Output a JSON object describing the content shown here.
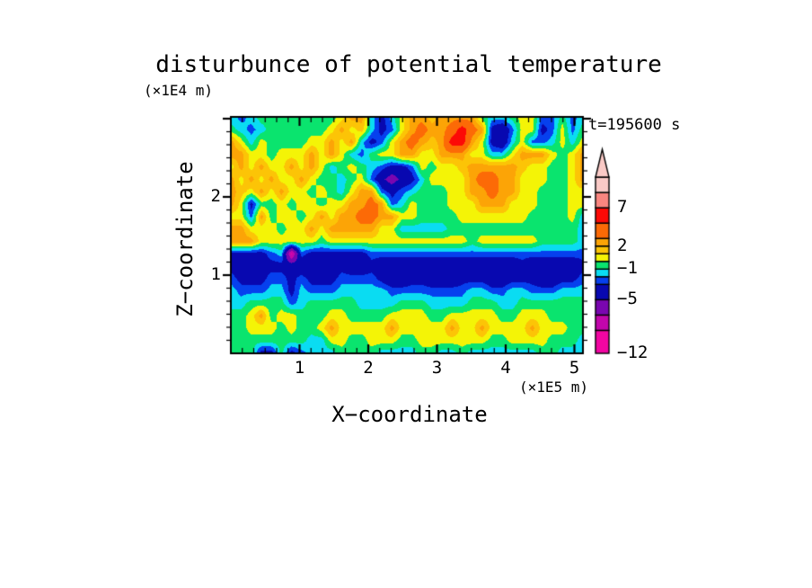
{
  "figure": {
    "title": "disturbunce of potential temperature",
    "y_axis_unit": "(×1E4 m)",
    "x_axis_unit": "(×1E5 m)",
    "y_axis_label": "Z−coordinate",
    "x_axis_label": "X−coordinate",
    "time_label": "t=195600 s"
  },
  "chart_data": {
    "type": "heatmap",
    "title": "disturbunce of potential temperature",
    "xlabel": "X-coordinate",
    "ylabel": "Z-coordinate",
    "x_unit": "×1E5 m",
    "z_unit": "×1E4 m",
    "time_annotation": "t=195600 s",
    "x_axis_range": [
      0,
      5.12
    ],
    "z_axis_range": [
      0,
      3.02
    ],
    "x_major_ticks": [
      1,
      2,
      3,
      4,
      5
    ],
    "y_major_ticks": [
      1,
      2
    ],
    "x_tick_labels": [
      "1",
      "2",
      "3",
      "4",
      "5"
    ],
    "y_tick_labels": [
      "1",
      "2"
    ],
    "ticks_per_unit": 6,
    "contour_levels": [
      -12,
      -9,
      -7,
      -5,
      -3,
      -2,
      -1,
      0,
      1,
      2,
      3,
      5,
      7,
      9,
      11
    ],
    "palette": [
      "#f206a2",
      "#c206ac",
      "#7a06b0",
      "#0808b0",
      "#0640ee",
      "#0adcf2",
      "#0ae46e",
      "#f4f406",
      "#fcc406",
      "#fca406",
      "#fc6a06",
      "#fc0a06",
      "#fa8680",
      "#facac6"
    ],
    "colorbar_labels": [
      {
        "value": 7,
        "label": "7"
      },
      {
        "value": 2,
        "label": "2"
      },
      {
        "value": -1,
        "label": "−1"
      },
      {
        "value": -5,
        "label": "−5"
      },
      {
        "value": -12,
        "label": "−12"
      }
    ],
    "grid": {
      "cols": 36,
      "rows": 20,
      "x_min": 0,
      "x_max": 5.12,
      "z_min": 0,
      "z_max": 3.02,
      "values": [
        [
          -1.5,
          -2.4,
          -1.5,
          -0.5,
          -0.5,
          -0.5,
          -0.5,
          -0.5,
          -0.5,
          -0.5,
          -0.5,
          0.5,
          2.5,
          2.5,
          -1.5,
          -3.6,
          -1.5,
          0.5,
          2.5,
          2.5,
          1.5,
          2.5,
          2.5,
          2.5,
          2.5,
          -0.5,
          -1.5,
          -1.5,
          -0.5,
          0.5,
          0.5,
          -2.4,
          -2.4,
          -0.5,
          -2.4,
          -1.5
        ],
        [
          -0.5,
          -1.5,
          -2.4,
          -1.5,
          -0.5,
          -0.5,
          -0.5,
          -0.5,
          -0.5,
          -0.5,
          0.5,
          2.5,
          0.5,
          1.5,
          -1.5,
          -3.6,
          -2.4,
          0.5,
          2.5,
          3.8,
          2.5,
          2.5,
          3.8,
          6,
          3.8,
          2.5,
          -3.6,
          -4.6,
          -2.4,
          0.5,
          0.5,
          -3.6,
          -2.4,
          0.5,
          -2.4,
          -0.5
        ],
        [
          2.5,
          0.5,
          -1.5,
          0.5,
          -0.5,
          -0.5,
          -0.5,
          -0.5,
          0.5,
          0.5,
          2.5,
          0.5,
          2.5,
          -1.5,
          -3.6,
          -2.4,
          0.5,
          2.5,
          3.8,
          2.5,
          1.5,
          2.5,
          6,
          6,
          2.5,
          0.5,
          -3.6,
          -4.6,
          -1.5,
          0.5,
          -2.4,
          -2.4,
          -1.5,
          0.5,
          -1.5,
          0.5
        ],
        [
          2.5,
          2.5,
          0.5,
          0.5,
          -0.5,
          0.5,
          0.5,
          0.5,
          2.5,
          0.5,
          2.5,
          0.5,
          -1.5,
          -2.4,
          -0.5,
          0.5,
          0.5,
          2.5,
          2.5,
          0.5,
          0.5,
          2.5,
          2.5,
          2.5,
          0.5,
          0.5,
          -1.5,
          -1.5,
          0.5,
          2.5,
          2.5,
          2.5,
          0.5,
          -0.5,
          0.5,
          2.5
        ],
        [
          0.5,
          2.5,
          0.5,
          2.5,
          0.5,
          0.5,
          2.5,
          0.5,
          2.5,
          0.5,
          -1.5,
          -0.5,
          0.5,
          -0.5,
          -1.5,
          -2.4,
          -3.6,
          -3.6,
          -2.4,
          0.5,
          -0.5,
          0.5,
          0.5,
          1.5,
          2.5,
          2.5,
          2.5,
          2.5,
          2.5,
          1.5,
          0.5,
          0.5,
          -0.5,
          -0.5,
          0.5,
          2.5
        ],
        [
          2.5,
          0.5,
          2.5,
          0.5,
          2.5,
          0.5,
          0.5,
          2.5,
          0.5,
          -0.5,
          -0.5,
          -1.5,
          -0.5,
          0.5,
          -2.4,
          -4.6,
          -6,
          -4.6,
          -3.6,
          -1.5,
          0.5,
          0.5,
          0.5,
          0.5,
          2.5,
          3.8,
          3.8,
          2.5,
          2.5,
          0.5,
          0.5,
          0.5,
          -0.5,
          -0.5,
          0.5,
          2.5
        ],
        [
          2.5,
          1.5,
          0.5,
          2.5,
          0.5,
          2.5,
          0.5,
          0.5,
          -0.5,
          0.5,
          -0.5,
          -1.5,
          0.5,
          2.5,
          2.5,
          -2.4,
          -3.6,
          -2.4,
          -1.5,
          -0.5,
          -0.5,
          -0.5,
          0.5,
          0.5,
          2.5,
          2.5,
          3.8,
          2.5,
          2.5,
          0.5,
          0.5,
          -0.5,
          -0.5,
          -0.5,
          0.5,
          0.5
        ],
        [
          2.5,
          0.5,
          -3.6,
          -0.5,
          -0.5,
          0.5,
          -0.5,
          0.5,
          0.5,
          -0.5,
          0.5,
          0.5,
          2.5,
          2.5,
          3.8,
          2.5,
          -2.4,
          -1.5,
          0.5,
          -0.5,
          -0.5,
          -0.5,
          0.5,
          0.5,
          0.5,
          2.5,
          2.5,
          2.5,
          0.5,
          0.5,
          0.5,
          -0.5,
          -0.5,
          -0.5,
          0.5,
          0.5
        ],
        [
          0.5,
          0.5,
          -2.4,
          2.5,
          -0.5,
          0.5,
          0.5,
          -0.5,
          0.5,
          2.5,
          0.5,
          2.5,
          2.5,
          3.8,
          3.8,
          2.5,
          2.5,
          0.5,
          0.5,
          -0.5,
          -0.5,
          -0.5,
          -0.5,
          0.5,
          0.5,
          0.5,
          0.5,
          0.5,
          0.5,
          0.5,
          -0.5,
          -0.5,
          -0.5,
          -0.5,
          0.5,
          -1.5
        ],
        [
          2.5,
          2.5,
          0.5,
          0.5,
          0.5,
          -0.5,
          0.5,
          0.5,
          2.5,
          0.5,
          2.5,
          2.5,
          2.5,
          2.5,
          2.5,
          0.5,
          0.5,
          -1.5,
          -1.5,
          -1.5,
          -1.5,
          -1.5,
          -0.5,
          -0.5,
          -0.5,
          -0.5,
          -0.5,
          -0.5,
          -0.5,
          -0.5,
          -0.5,
          -0.5,
          -0.5,
          -0.5,
          -0.5,
          -1.5
        ],
        [
          2.5,
          2.5,
          2.5,
          0.5,
          0.5,
          0.5,
          0.5,
          0.5,
          0.5,
          -0.5,
          0.5,
          0.5,
          0.5,
          0.5,
          0.5,
          0.5,
          0.5,
          0.5,
          0.5,
          0.5,
          0.5,
          0.5,
          0.5,
          0.5,
          -0.5,
          0.5,
          0.5,
          0.5,
          0.5,
          0.5,
          0.5,
          -0.5,
          -0.5,
          -0.5,
          -0.5,
          -1.5
        ],
        [
          -3.6,
          -3.6,
          -3.6,
          -3.6,
          -2.4,
          -1.5,
          -9.5,
          -2.4,
          -3.6,
          -3.6,
          -3.6,
          -3.6,
          -3.6,
          -3.6,
          -2.4,
          -2.4,
          -2.4,
          -2.4,
          -2.4,
          -2.4,
          -2.4,
          -2.4,
          -2.4,
          -2.4,
          -2.4,
          -2.4,
          -2.4,
          -2.4,
          -2.4,
          -2.4,
          -2.4,
          -2.4,
          -2.4,
          -2.4,
          -2.4,
          -2.4
        ],
        [
          -3.6,
          -4.6,
          -4.6,
          -3.6,
          -3.6,
          -3.6,
          -3.6,
          -4.6,
          -4.6,
          -4.6,
          -4.6,
          -3.6,
          -4.6,
          -4.6,
          -3.6,
          -4.6,
          -4.6,
          -4.6,
          -4.6,
          -4.6,
          -4.6,
          -4.6,
          -4.6,
          -4.6,
          -4.6,
          -4.6,
          -4.6,
          -4.6,
          -4.6,
          -3.6,
          -4.6,
          -4.6,
          -4.6,
          -4.6,
          -4.6,
          -3.6
        ],
        [
          -2.4,
          -3.6,
          -3.6,
          -3.6,
          -2.4,
          -2.4,
          -3.6,
          -2.4,
          -3.6,
          -3.6,
          -3.6,
          -2.4,
          -2.4,
          -2.4,
          -2.4,
          -3.6,
          -4.6,
          -4.6,
          -3.6,
          -3.6,
          -4.6,
          -4.6,
          -4.6,
          -3.6,
          -3.6,
          -3.6,
          -4.6,
          -4.6,
          -3.6,
          -3.6,
          -3.6,
          -4.6,
          -4.6,
          -3.6,
          -3.6,
          -2.4
        ],
        [
          -1.5,
          -2.4,
          -2.4,
          -2.4,
          -1.5,
          -1.5,
          -3.6,
          -1.5,
          -2.4,
          -2.4,
          -2.4,
          -1.5,
          -1.5,
          -1.5,
          -1.5,
          -1.5,
          -2.4,
          -2.4,
          -2.4,
          -2.4,
          -2.4,
          -2.4,
          -2.4,
          -2.4,
          -1.5,
          -1.5,
          -2.4,
          -2.4,
          -1.5,
          -1.5,
          -2.4,
          -2.4,
          -2.4,
          -1.5,
          -1.5,
          -1.5
        ],
        [
          -1.5,
          -1.5,
          -0.5,
          -0.5,
          -0.5,
          -0.5,
          -2.4,
          -1.5,
          -0.5,
          -0.5,
          -0.5,
          -0.5,
          -0.5,
          -1.5,
          -1.5,
          -1.5,
          -1.5,
          -0.5,
          -0.5,
          -0.5,
          -1.5,
          -1.5,
          -1.5,
          -1.5,
          -0.5,
          -0.5,
          -0.5,
          -1.5,
          -1.5,
          -0.5,
          -0.5,
          -0.5,
          -0.5,
          -0.5,
          -0.5,
          -0.5
        ],
        [
          -0.5,
          -0.5,
          0.5,
          2.5,
          -0.5,
          0.5,
          0.5,
          -0.5,
          -0.5,
          -0.5,
          0.5,
          0.5,
          -0.5,
          -0.5,
          -0.5,
          -0.5,
          0.5,
          0.5,
          0.5,
          0.5,
          -0.5,
          -0.5,
          0.5,
          0.5,
          0.5,
          0.5,
          0.5,
          -0.5,
          -0.5,
          0.5,
          0.5,
          0.5,
          -0.5,
          -0.5,
          -0.5,
          -0.5
        ],
        [
          -0.5,
          -0.5,
          0.5,
          0.5,
          0.5,
          -0.5,
          0.5,
          -0.5,
          -0.5,
          0.5,
          2.5,
          0.5,
          0.5,
          0.5,
          0.5,
          0.5,
          2.5,
          0.5,
          0.5,
          0.5,
          0.5,
          0.5,
          2.5,
          0.5,
          0.5,
          2.5,
          0.5,
          0.5,
          0.5,
          0.5,
          2.5,
          0.5,
          0.5,
          0.5,
          -0.5,
          -0.5
        ],
        [
          -0.5,
          -0.5,
          -0.5,
          -0.5,
          -0.5,
          -0.5,
          -0.5,
          -0.5,
          -1.5,
          -1.5,
          0.5,
          0.5,
          -0.5,
          -0.5,
          0.5,
          0.5,
          0.5,
          -0.5,
          -0.5,
          0.5,
          0.5,
          0.5,
          0.5,
          0.5,
          0.5,
          0.5,
          -0.5,
          -0.5,
          0.5,
          0.5,
          0.5,
          0.5,
          -0.5,
          -0.5,
          -0.5,
          -1.5
        ],
        [
          -0.5,
          -0.5,
          -0.5,
          -3.6,
          -3.6,
          -0.5,
          -3.6,
          -2.4,
          -1.5,
          -1.5,
          -1.5,
          -0.5,
          -0.5,
          -0.5,
          -0.5,
          -1.5,
          -1.5,
          -1.5,
          -1.5,
          -0.5,
          -0.5,
          -1.5,
          -1.5,
          -0.5,
          -1.5,
          -1.5,
          -1.5,
          -1.5,
          -1.5,
          -1.5,
          -1.5,
          -0.5,
          -0.5,
          -1.5,
          -1.5,
          -1.5
        ]
      ]
    }
  }
}
